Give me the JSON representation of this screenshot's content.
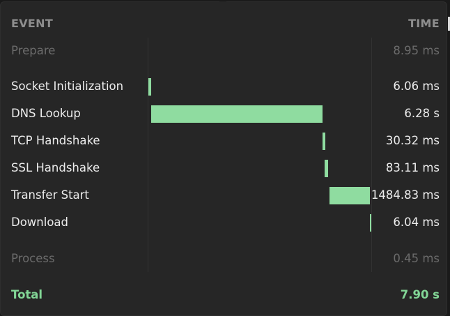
{
  "header": {
    "event_label": "EVENT",
    "time_label": "TIME"
  },
  "colors": {
    "bar": "#8fdca0",
    "total": "#82d696",
    "muted_text": "#6b6b6b"
  },
  "timeline": {
    "prepare": {
      "label": "Prepare",
      "time": "8.95 ms"
    },
    "phases": [
      {
        "label": "Socket Initialization",
        "time": "6.06 ms"
      },
      {
        "label": "DNS Lookup",
        "time": "6.28 s"
      },
      {
        "label": "TCP Handshake",
        "time": "30.32 ms"
      },
      {
        "label": "SSL Handshake",
        "time": "83.11 ms"
      },
      {
        "label": "Transfer Start",
        "time": "1484.83 ms"
      },
      {
        "label": "Download",
        "time": "6.04 ms"
      }
    ],
    "process": {
      "label": "Process",
      "time": "0.45 ms"
    },
    "total": {
      "label": "Total",
      "time": "7.90 s"
    }
  }
}
